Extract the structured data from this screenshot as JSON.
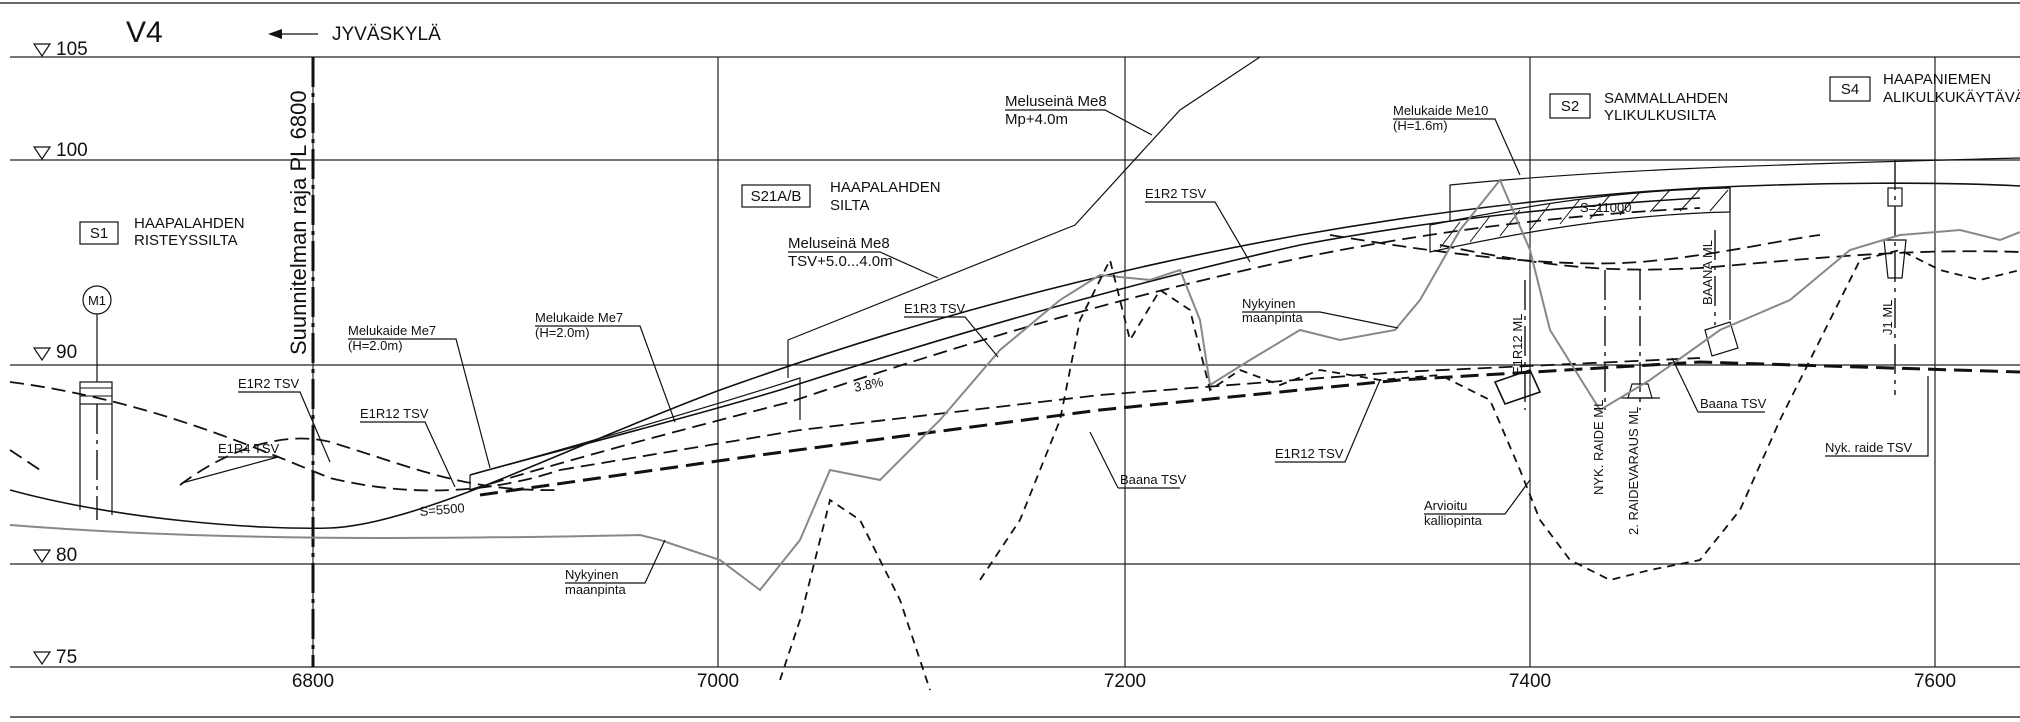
{
  "header": {
    "view_label": "V4",
    "direction_label": "JYVÄSKYLÄ"
  },
  "levels": [
    "105",
    "100",
    "90",
    "80",
    "75"
  ],
  "stations": [
    "6800",
    "7000",
    "7200",
    "7400",
    "7600"
  ],
  "boundary_label": "Suunnitelman raja PL 6800",
  "structures": {
    "s1": {
      "code": "S1",
      "name1": "HAAPALAHDEN",
      "name2": "RISTEYSSILTA"
    },
    "s21": {
      "code": "S21A/B",
      "name1": "HAAPALAHDEN",
      "name2": "SILTA"
    },
    "s2": {
      "code": "S2",
      "name1": "SAMMALLAHDEN",
      "name2": "YLIKULKUSILTA"
    },
    "s4": {
      "code": "S4",
      "name1": "HAAPANIEMEN",
      "name2": "ALIKULKUKÄYTÄVÄ"
    },
    "m1": "M1"
  },
  "labels": {
    "e1r2_left": "E1R2 TSV",
    "e1r4": "E1R4 TSV",
    "e1r12_left": "E1R12 TSV",
    "me7a": "Melukaide Me7",
    "me7a_h": "(H=2.0m)",
    "me7b": "Melukaide Me7",
    "me7b_h": "(H=2.0m)",
    "me8a": "Meluseinä Me8",
    "me8a_sub": "TSV+5.0...4.0m",
    "me8b": "Meluseinä Me8",
    "me8b_sub": "Mp+4.0m",
    "me10": "Melukaide Me10",
    "me10_h": "(H=1.6m)",
    "e1r3": "E1R3 TSV",
    "e1r2_right": "E1R2 TSV",
    "ground_a": "Nykyinen",
    "ground_b": "maanpinta",
    "ground2_a": "Nykyinen",
    "ground2_b": "maanpinta",
    "grade": "3.8%",
    "s5500": "S=5500",
    "s11000": "S=11000",
    "baana_tsv": "Baana TSV",
    "e1r12_right": "E1R12 TSV",
    "rock_a": "Arvioitu",
    "rock_b": "kalliopinta",
    "baana_tsv2": "Baana TSV",
    "nyk_raide_tsv": "Nyk. raide TSV",
    "e1r12_ml": "E1R12 ML",
    "nyk_raide_ml": "NYK. RAIDE ML",
    "raidevaraus_ml": "2. RAIDEVARAUS ML",
    "baana_ml": "BAANA ML",
    "j1_ml": "J1 ML"
  }
}
